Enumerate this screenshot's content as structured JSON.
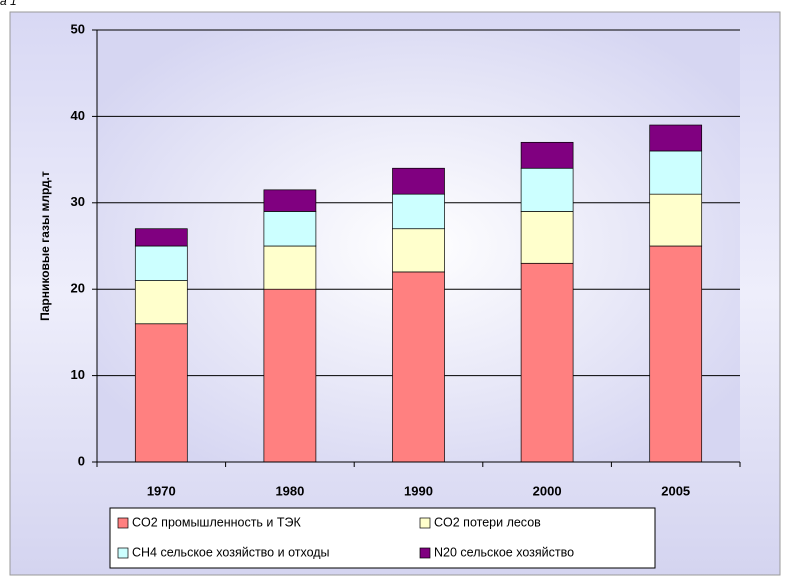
{
  "chart_data": {
    "type": "stacked_bar",
    "annotation": "а 1",
    "y_label": "Парниковые газы млрд.т",
    "categories": [
      "1970",
      "1980",
      "1990",
      "2000",
      "2005"
    ],
    "series": [
      {
        "name": "CO2 промышленность и ТЭК",
        "color": "#ff8080",
        "values": [
          16,
          20,
          22,
          23,
          25
        ]
      },
      {
        "name": "CO2 потери лесов",
        "color": "#ffffcc",
        "values": [
          5,
          5,
          5,
          6,
          6
        ]
      },
      {
        "name": "CH4 сельское хозяйство и отходы",
        "color": "#ccffff",
        "values": [
          4,
          4,
          4,
          5,
          5
        ]
      },
      {
        "name": "N20 сельское хозяйство",
        "color": "#800080",
        "values": [
          2,
          2.5,
          3,
          3,
          3
        ]
      }
    ],
    "ylim": [
      0,
      50
    ],
    "yticks": [
      0,
      10,
      20,
      30,
      40,
      50
    ],
    "grid": true
  }
}
